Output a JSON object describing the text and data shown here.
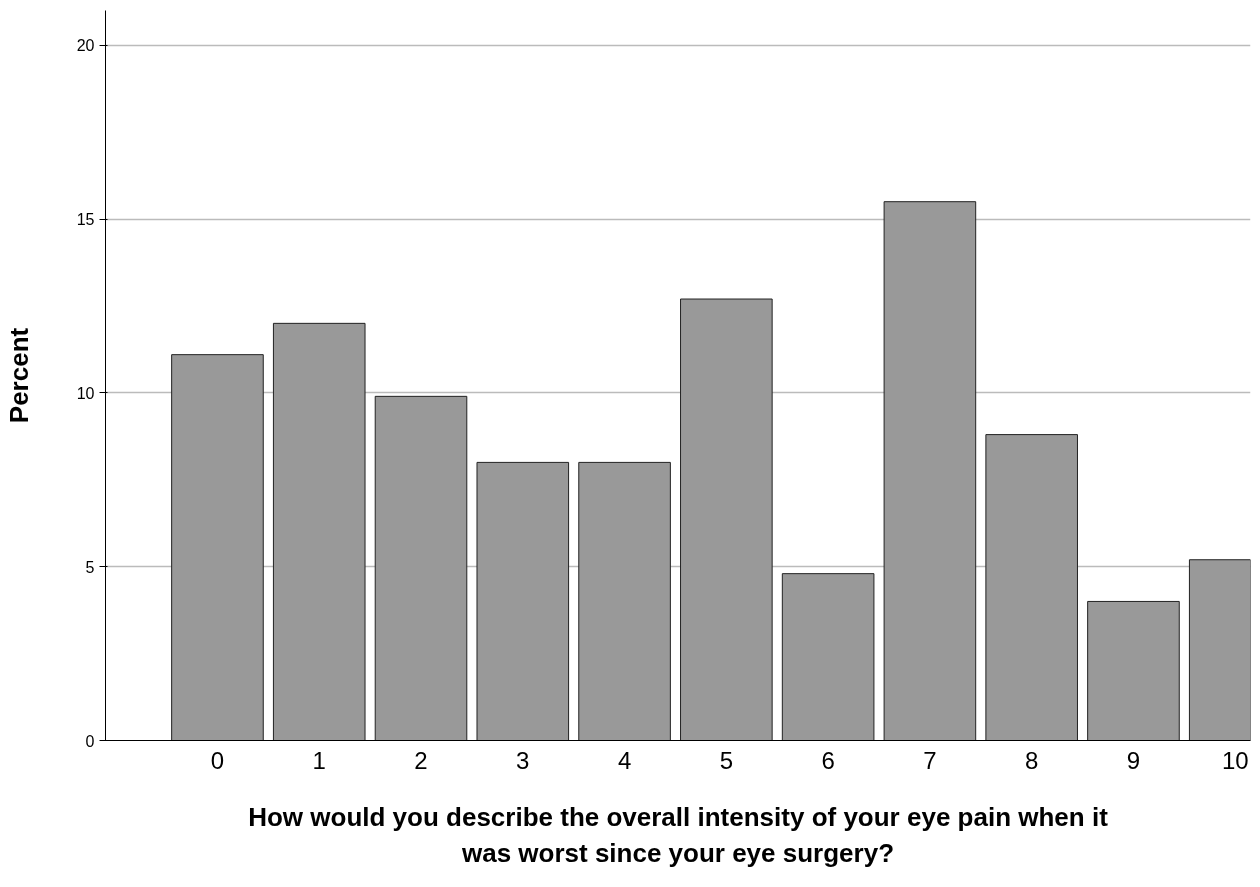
{
  "chart_data": {
    "type": "bar",
    "xlabel": "How would you describe the overall intensity of your eye pain when it was worst since your eye surgery?",
    "ylabel": "Percent",
    "categories": [
      "0",
      "1",
      "2",
      "3",
      "4",
      "5",
      "6",
      "7",
      "8",
      "9",
      "10"
    ],
    "values": [
      11.1,
      12.0,
      9.9,
      8.0,
      8.0,
      12.7,
      4.8,
      15.5,
      8.8,
      4.0,
      5.2
    ],
    "color": "#999999",
    "ylim": [
      0,
      21
    ],
    "yticks": [
      0,
      5,
      10,
      15,
      20
    ],
    "grid": "y"
  }
}
